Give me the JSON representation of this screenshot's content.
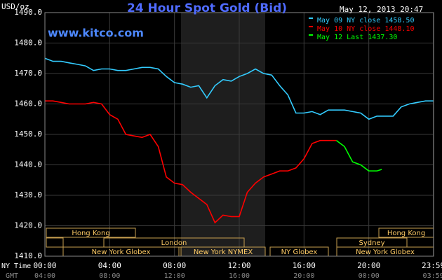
{
  "chart_data": {
    "type": "line",
    "title": "24 Hour Spot Gold (Bid)",
    "source": "www.kitco.com",
    "timestamp": "May 12, 2013 20:47",
    "y_label": "USD/oz",
    "x_label": "NY Time",
    "x2_label": "GMT",
    "xlim": [
      0,
      24
    ],
    "xticks": [
      {
        "value": 0,
        "label": "00:00"
      },
      {
        "value": 4,
        "label": "04:00"
      },
      {
        "value": 8,
        "label": "08:00"
      },
      {
        "value": 12,
        "label": "12:00"
      },
      {
        "value": 16,
        "label": "16:00"
      },
      {
        "value": 20,
        "label": "20:00"
      },
      {
        "value": 23.983,
        "label": "23:59"
      }
    ],
    "x2ticks": [
      "04:00",
      "08:00",
      "12:00",
      "16:00",
      "20:00",
      "00:00",
      "03:59"
    ],
    "ylim": [
      1410,
      1490
    ],
    "yticks": [
      {
        "value": 1410,
        "label": "1410.0"
      },
      {
        "value": 1420,
        "label": "1420.0"
      },
      {
        "value": 1430,
        "label": "1430.0"
      },
      {
        "value": 1440,
        "label": "1440.0"
      },
      {
        "value": 1450,
        "label": "1450.0"
      },
      {
        "value": 1460,
        "label": "1460.0"
      },
      {
        "value": 1470,
        "label": "1470.0"
      },
      {
        "value": 1480,
        "label": "1480.0"
      },
      {
        "value": 1490,
        "label": "1490.0"
      }
    ],
    "grid": true,
    "sessions": [
      "Hong Kong",
      "Hong Kong",
      "London",
      "Sydney",
      "New York Globex",
      "New York NYMEX",
      "NY Globex",
      "New York Globex"
    ],
    "series": [
      {
        "name": "May 09 NY close 1458.50",
        "color": "#33ccff",
        "x": [
          0,
          0.5,
          1,
          1.5,
          2,
          2.5,
          3,
          3.5,
          4,
          4.5,
          5,
          5.5,
          6,
          6.5,
          7,
          7.5,
          8,
          8.5,
          9,
          9.5,
          10,
          10.5,
          11,
          11.5,
          12,
          12.5,
          13,
          13.5,
          14,
          14.5,
          15,
          15.5,
          16,
          16.5,
          17,
          17.5,
          18,
          18.5,
          19,
          19.5,
          20,
          20.5,
          21,
          21.5,
          22,
          22.5,
          23,
          23.5,
          24
        ],
        "values": [
          1475,
          1474,
          1474,
          1473.5,
          1473,
          1472.5,
          1471,
          1471.5,
          1471.5,
          1471,
          1471,
          1471.5,
          1472,
          1472,
          1471.5,
          1469,
          1467,
          1466.5,
          1465.5,
          1466,
          1462,
          1466,
          1468,
          1467.5,
          1469,
          1470,
          1471.5,
          1470,
          1469.5,
          1466,
          1463,
          1457,
          1457,
          1457.5,
          1456.5,
          1458,
          1458,
          1458,
          1457.5,
          1457,
          1455,
          1456,
          1456,
          1456,
          1459,
          1460,
          1460.5,
          1461,
          1461
        ]
      },
      {
        "name": "May 10 NY close 1448.10",
        "color": "#ff0000",
        "x": [
          0,
          0.5,
          1,
          1.5,
          2,
          2.5,
          3,
          3.5,
          4,
          4.5,
          5,
          5.5,
          6,
          6.5,
          7,
          7.5,
          8,
          8.5,
          9,
          9.5,
          10,
          10.5,
          11,
          11.5,
          12,
          12.5,
          13,
          13.5,
          14,
          14.5,
          15,
          15.5,
          16,
          16.5,
          17,
          17.5,
          18
        ],
        "values": [
          1461,
          1461,
          1460.5,
          1460,
          1460,
          1460,
          1460.5,
          1460,
          1456.5,
          1455,
          1450,
          1449.5,
          1449,
          1450,
          1446,
          1436,
          1434,
          1433.5,
          1431,
          1429,
          1427,
          1421,
          1423.5,
          1423,
          1423,
          1431,
          1434,
          1436,
          1437,
          1438,
          1438,
          1439,
          1442,
          1447,
          1448,
          1448,
          1448
        ]
      },
      {
        "name": "May 12 Last 1437.30",
        "color": "#00ff00",
        "x": [
          18,
          18.5,
          19,
          19.5,
          20,
          20.5,
          20.8
        ],
        "values": [
          1448,
          1446,
          1441,
          1440,
          1438,
          1438,
          1438.5
        ]
      }
    ]
  }
}
